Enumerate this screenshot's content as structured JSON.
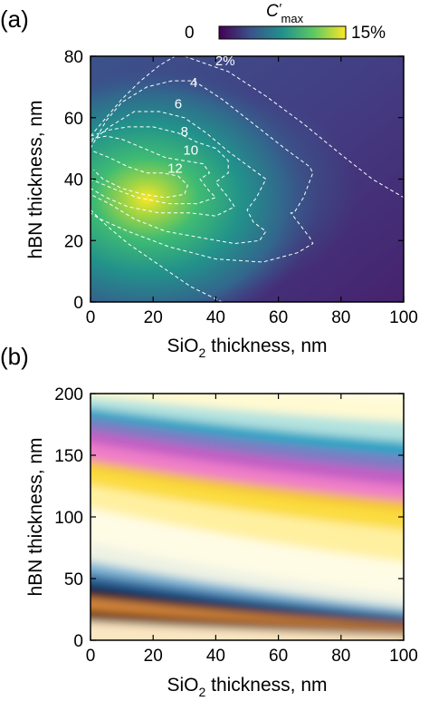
{
  "panels": {
    "a": {
      "label": "(a)"
    },
    "b": {
      "label": "(b)"
    }
  },
  "colorbar": {
    "symbol": "C",
    "symbol_prime": "′",
    "subscript": "max",
    "min_label": "0",
    "max_label": "15%",
    "colors": [
      "#440154",
      "#3b528b",
      "#21918c",
      "#5ec962",
      "#fde725"
    ]
  },
  "chart_data": [
    {
      "type": "heatmap",
      "panel": "a",
      "xlabel": {
        "main": "SiO",
        "sub": "2",
        "rest": " thickness, nm"
      },
      "ylabel": "hBN thickness, nm",
      "xlim": [
        0,
        100
      ],
      "ylim": [
        0,
        80
      ],
      "x_ticks": [
        "0",
        "20",
        "40",
        "60",
        "80",
        "100"
      ],
      "y_ticks": [
        "0",
        "20",
        "40",
        "60",
        "80"
      ],
      "value_range": [
        0,
        15
      ],
      "peak": {
        "x": 18,
        "y": 36,
        "value": 14
      },
      "contour_levels": [
        "2%",
        "4",
        "6",
        "8",
        "10",
        "12"
      ],
      "contours": [
        {
          "label": "2%",
          "label_at": [
            43,
            77
          ],
          "points": [
            [
              0,
              54
            ],
            [
              5,
              60
            ],
            [
              10,
              66
            ],
            [
              16,
              72
            ],
            [
              22,
              77
            ],
            [
              27,
              80
            ]
          ]
        },
        {
          "label": "2%",
          "label_at": null,
          "points": [
            [
              0,
              30
            ],
            [
              5,
              25
            ],
            [
              12,
              19
            ],
            [
              22,
              12
            ],
            [
              32,
              5
            ],
            [
              42,
              0
            ]
          ]
        },
        {
          "label": "2%",
          "label_at": null,
          "points": [
            [
              30,
              80
            ],
            [
              44,
              75
            ],
            [
              56,
              67
            ],
            [
              68,
              58
            ],
            [
              80,
              48
            ],
            [
              90,
              40
            ],
            [
              100,
              34
            ]
          ]
        },
        {
          "label": "4",
          "label_at": [
            33,
            70
          ],
          "points": [
            [
              0,
              50
            ],
            [
              5,
              59
            ],
            [
              10,
              65
            ],
            [
              18,
              70
            ],
            [
              26,
              72
            ],
            [
              33,
              72
            ],
            [
              42,
              66
            ],
            [
              52,
              58
            ],
            [
              62,
              50
            ],
            [
              70,
              44
            ],
            [
              71,
              42
            ],
            [
              68,
              34
            ],
            [
              65,
              29
            ],
            [
              64,
              29
            ],
            [
              70,
              21
            ],
            [
              71,
              19
            ],
            [
              66,
              16
            ],
            [
              55,
              13
            ],
            [
              40,
              14
            ],
            [
              25,
              18
            ],
            [
              12,
              23
            ],
            [
              3,
              27
            ],
            [
              0,
              29
            ]
          ]
        },
        {
          "label": "6",
          "label_at": [
            28,
            63
          ],
          "points": [
            [
              0,
              52
            ],
            [
              6,
              57
            ],
            [
              14,
              62
            ],
            [
              22,
              62
            ],
            [
              30,
              60
            ],
            [
              37,
              55
            ],
            [
              44,
              49
            ],
            [
              52,
              43
            ],
            [
              56,
              40
            ],
            [
              53,
              34
            ],
            [
              50,
              30
            ],
            [
              52,
              26
            ],
            [
              56,
              23
            ],
            [
              54,
              20
            ],
            [
              46,
              19
            ],
            [
              35,
              21
            ],
            [
              24,
              23
            ],
            [
              14,
              27
            ],
            [
              6,
              32
            ],
            [
              0,
              35
            ]
          ]
        },
        {
          "label": "8",
          "label_at": [
            30,
            54
          ],
          "points": [
            [
              0,
              54
            ],
            [
              6,
              56
            ],
            [
              12,
              57
            ],
            [
              20,
              57
            ],
            [
              28,
              55
            ],
            [
              34,
              52
            ],
            [
              40,
              50
            ],
            [
              44,
              46
            ],
            [
              44,
              42
            ],
            [
              40,
              39
            ],
            [
              44,
              34
            ],
            [
              46,
              31
            ],
            [
              40,
              28
            ],
            [
              32,
              29
            ],
            [
              22,
              29
            ],
            [
              12,
              31
            ],
            [
              5,
              34
            ],
            [
              0,
              37
            ]
          ]
        },
        {
          "label": "10",
          "label_at": [
            32,
            48
          ],
          "points": [
            [
              0,
              53
            ],
            [
              5,
              54
            ],
            [
              10,
              53
            ],
            [
              17,
              50
            ],
            [
              24,
              47
            ],
            [
              30,
              46
            ],
            [
              36,
              45
            ],
            [
              38,
              42
            ],
            [
              35,
              40
            ],
            [
              38,
              36
            ],
            [
              40,
              34
            ],
            [
              34,
              32
            ],
            [
              25,
              32
            ],
            [
              15,
              34
            ],
            [
              7,
              37
            ],
            [
              0,
              40
            ]
          ]
        },
        {
          "label": "12",
          "label_at": [
            27,
            42
          ],
          "points": [
            [
              1,
              49
            ],
            [
              6,
              47
            ],
            [
              12,
              44
            ],
            [
              18,
              42
            ],
            [
              23,
              42
            ],
            [
              28,
              41
            ],
            [
              31,
              38
            ],
            [
              30,
              35
            ],
            [
              24,
              34
            ],
            [
              17,
              35
            ],
            [
              10,
              37
            ],
            [
              4,
              40
            ],
            [
              1,
              43
            ]
          ]
        }
      ]
    },
    {
      "type": "heatmap",
      "panel": "b",
      "xlabel": {
        "main": "SiO",
        "sub": "2",
        "rest": " thickness, nm"
      },
      "ylabel": "hBN thickness, nm",
      "xlim": [
        0,
        100
      ],
      "ylim": [
        0,
        200
      ],
      "x_ticks": [
        "0",
        "20",
        "40",
        "60",
        "80",
        "100"
      ],
      "y_ticks": [
        "0",
        "50",
        "100",
        "150",
        "200"
      ],
      "bands": [
        {
          "color": "#fbe6c2",
          "y0": 16,
          "y1": 4
        },
        {
          "color": "#5c2a06",
          "y0": 25,
          "y1": 8
        },
        {
          "color": "#d6863a",
          "y0": 36,
          "y1": 12
        },
        {
          "color": "#101532",
          "y0": 46,
          "y1": 15
        },
        {
          "color": "#2a6095",
          "y0": 56,
          "y1": 20
        },
        {
          "color": "#7fb5d5",
          "y0": 66,
          "y1": 25
        },
        {
          "color": "#eef2e4",
          "y0": 82,
          "y1": 35
        },
        {
          "color": "#fffce5",
          "y0": 110,
          "y1": 62
        },
        {
          "color": "#fff0a0",
          "y0": 128,
          "y1": 88
        },
        {
          "color": "#fbdc40",
          "y0": 142,
          "y1": 104
        },
        {
          "color": "#f3c032",
          "y0": 148,
          "y1": 112
        },
        {
          "color": "#f07ec8",
          "y0": 162,
          "y1": 124
        },
        {
          "color": "#c25ec4",
          "y0": 172,
          "y1": 136
        },
        {
          "color": "#7d7cc3",
          "y0": 182,
          "y1": 148
        },
        {
          "color": "#28a3c4",
          "y0": 190,
          "y1": 160
        },
        {
          "color": "#b2e2df",
          "y0": 199,
          "y1": 176
        },
        {
          "color": "#fffad2",
          "y0": 212,
          "y1": 194
        }
      ]
    }
  ]
}
